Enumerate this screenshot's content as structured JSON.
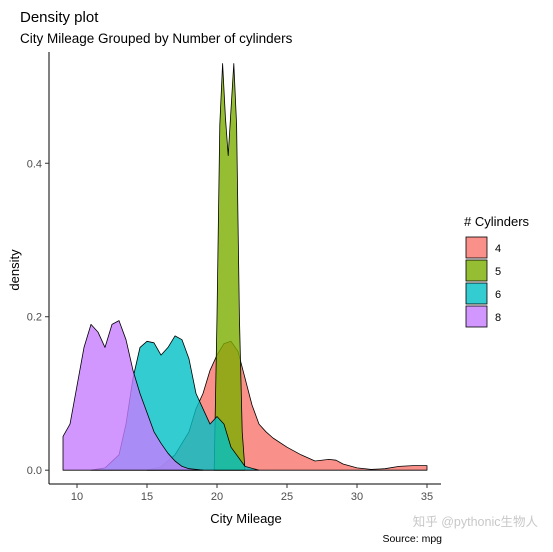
{
  "chart_data": {
    "type": "area",
    "title": "Density plot",
    "subtitle": "City Mileage Grouped by Number of cylinders",
    "xlabel": "City Mileage",
    "ylabel": "density",
    "caption": "Source: mpg",
    "xlim": [
      8,
      36
    ],
    "ylim": [
      -0.018,
      0.545
    ],
    "xticks": [
      10,
      15,
      20,
      25,
      30,
      35
    ],
    "yticks": [
      0.0,
      0.2,
      0.4
    ],
    "ytick_labels": [
      "0.0",
      "0.2",
      "0.4"
    ],
    "legend_title": "# Cylinders",
    "legend_position": "right",
    "grid": false,
    "series": [
      {
        "name": "4",
        "color": "#F8766D",
        "x": [
          15,
          16,
          17,
          18,
          18.5,
          19,
          19.5,
          20,
          20.5,
          21,
          21.5,
          22,
          22.5,
          23,
          23.5,
          24,
          25,
          26,
          27,
          28,
          28.5,
          29,
          30,
          31,
          32,
          33,
          34,
          35
        ],
        "y": [
          0.0,
          0.004,
          0.02,
          0.05,
          0.08,
          0.1,
          0.13,
          0.15,
          0.165,
          0.168,
          0.155,
          0.12,
          0.085,
          0.06,
          0.05,
          0.042,
          0.03,
          0.02,
          0.012,
          0.014,
          0.013,
          0.008,
          0.003,
          0.001,
          0.002,
          0.005,
          0.006,
          0.006
        ]
      },
      {
        "name": "5",
        "color": "#7CAE00",
        "x": [
          19.8,
          20.0,
          20.2,
          20.4,
          20.6,
          20.8,
          21.0,
          21.2,
          21.4,
          21.6,
          21.8,
          22.0
        ],
        "y": [
          0.0,
          0.2,
          0.45,
          0.53,
          0.46,
          0.41,
          0.47,
          0.53,
          0.45,
          0.2,
          0.05,
          0.0
        ]
      },
      {
        "name": "6",
        "color": "#00BFC4",
        "x": [
          11,
          12,
          13,
          13.5,
          14,
          14.5,
          15,
          15.5,
          16,
          16.5,
          17,
          17.5,
          18,
          18.5,
          19,
          19.5,
          20,
          20.5,
          21,
          22,
          23
        ],
        "y": [
          0.0,
          0.003,
          0.02,
          0.06,
          0.12,
          0.16,
          0.168,
          0.166,
          0.15,
          0.16,
          0.175,
          0.17,
          0.145,
          0.1,
          0.08,
          0.06,
          0.07,
          0.06,
          0.03,
          0.005,
          0.0
        ]
      },
      {
        "name": "8",
        "color": "#C77CFF",
        "x": [
          9,
          9.5,
          10,
          10.5,
          11,
          11.5,
          12,
          12.5,
          13,
          13.5,
          14,
          14.5,
          15,
          15.5,
          16,
          16.5,
          17,
          17.5,
          18,
          18.5,
          19
        ],
        "y": [
          0.044,
          0.06,
          0.11,
          0.16,
          0.19,
          0.18,
          0.16,
          0.19,
          0.195,
          0.17,
          0.13,
          0.1,
          0.075,
          0.05,
          0.035,
          0.022,
          0.012,
          0.005,
          0.002,
          0.001,
          0.0
        ]
      }
    ]
  },
  "watermark": "知乎 @pythonic生物人"
}
